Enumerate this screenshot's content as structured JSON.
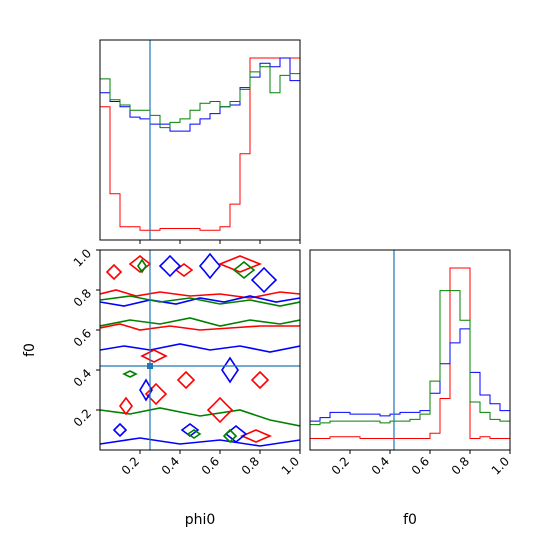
{
  "chart_data": {
    "type": "corner",
    "colors": {
      "series_1": "#ff0000",
      "series_2": "#0000ff",
      "series_3": "#008000",
      "truth": "#1f77b4"
    },
    "labels": {
      "phi0": "phi0",
      "f0": "f0"
    },
    "ticks": {
      "phi0": [
        "0.2",
        "0.4",
        "0.6",
        "0.8",
        "1.0"
      ],
      "f0": [
        "0.2",
        "0.4",
        "0.6",
        "0.8",
        "1.0"
      ]
    },
    "ranges": {
      "phi0": [
        0,
        1
      ],
      "f0": [
        0,
        1
      ]
    },
    "truth": {
      "phi0": 0.25,
      "f0": 0.42
    },
    "hist_phi0": {
      "bins": 20,
      "series": [
        {
          "color": "#ff0000",
          "values": [
            0.72,
            0.22,
            0.03,
            0.03,
            0.01,
            0.01,
            0.02,
            0.02,
            0.02,
            0.02,
            0.01,
            0.01,
            0.03,
            0.16,
            0.45,
            1.0,
            1.0,
            1.0,
            1.0,
            1.0
          ]
        },
        {
          "color": "#0000ff",
          "values": [
            0.8,
            0.75,
            0.72,
            0.66,
            0.65,
            0.62,
            0.62,
            0.58,
            0.58,
            0.62,
            0.65,
            0.68,
            0.72,
            0.73,
            0.83,
            0.89,
            0.97,
            0.95,
            1.0,
            0.87
          ]
        },
        {
          "color": "#008000",
          "values": [
            0.88,
            0.76,
            0.73,
            0.7,
            0.7,
            0.67,
            0.6,
            0.63,
            0.65,
            0.7,
            0.74,
            0.75,
            0.72,
            0.75,
            0.82,
            0.92,
            0.95,
            0.8,
            0.9,
            0.91
          ]
        }
      ]
    },
    "hist_f0": {
      "bins": 20,
      "series": [
        {
          "color": "#ff0000",
          "values": [
            0.02,
            0.02,
            0.03,
            0.03,
            0.03,
            0.02,
            0.02,
            0.02,
            0.02,
            0.02,
            0.02,
            0.02,
            0.05,
            0.25,
            1.0,
            1.0,
            0.02,
            0.03,
            0.02,
            0.02
          ]
        },
        {
          "color": "#0000ff",
          "values": [
            0.12,
            0.14,
            0.17,
            0.17,
            0.16,
            0.16,
            0.16,
            0.15,
            0.16,
            0.17,
            0.17,
            0.18,
            0.28,
            0.45,
            0.57,
            0.65,
            0.4,
            0.27,
            0.22,
            0.18
          ]
        },
        {
          "color": "#008000",
          "values": [
            0.1,
            0.11,
            0.12,
            0.12,
            0.12,
            0.12,
            0.12,
            0.11,
            0.12,
            0.12,
            0.13,
            0.16,
            0.35,
            0.87,
            0.87,
            0.7,
            0.23,
            0.17,
            0.13,
            0.12
          ]
        }
      ]
    },
    "contour_paths": [
      {
        "color": "#ff0000",
        "points": [
          [
            0.0,
            0.78
          ],
          [
            0.08,
            0.8
          ],
          [
            0.18,
            0.77
          ],
          [
            0.3,
            0.79
          ],
          [
            0.45,
            0.77
          ],
          [
            0.6,
            0.78
          ],
          [
            0.75,
            0.76
          ],
          [
            0.9,
            0.79
          ],
          [
            1.0,
            0.78
          ]
        ]
      },
      {
        "color": "#ff0000",
        "points": [
          [
            0.0,
            0.61
          ],
          [
            0.1,
            0.63
          ],
          [
            0.2,
            0.6
          ],
          [
            0.35,
            0.62
          ],
          [
            0.5,
            0.6
          ],
          [
            0.65,
            0.61
          ],
          [
            0.8,
            0.62
          ],
          [
            1.0,
            0.62
          ]
        ]
      },
      {
        "color": "#0000ff",
        "points": [
          [
            0.0,
            0.74
          ],
          [
            0.12,
            0.72
          ],
          [
            0.25,
            0.75
          ],
          [
            0.38,
            0.73
          ],
          [
            0.5,
            0.76
          ],
          [
            0.62,
            0.74
          ],
          [
            0.75,
            0.77
          ],
          [
            0.88,
            0.74
          ],
          [
            1.0,
            0.76
          ]
        ]
      },
      {
        "color": "#0000ff",
        "points": [
          [
            0.0,
            0.5
          ],
          [
            0.12,
            0.52
          ],
          [
            0.25,
            0.5
          ],
          [
            0.4,
            0.53
          ],
          [
            0.55,
            0.5
          ],
          [
            0.7,
            0.52
          ],
          [
            0.85,
            0.49
          ],
          [
            1.0,
            0.52
          ]
        ]
      },
      {
        "color": "#0000ff",
        "points": [
          [
            0.0,
            0.03
          ],
          [
            0.2,
            0.06
          ],
          [
            0.4,
            0.03
          ],
          [
            0.6,
            0.05
          ],
          [
            0.8,
            0.02
          ],
          [
            1.0,
            0.05
          ]
        ]
      },
      {
        "color": "#008000",
        "points": [
          [
            0.0,
            0.75
          ],
          [
            0.15,
            0.77
          ],
          [
            0.3,
            0.74
          ],
          [
            0.45,
            0.76
          ],
          [
            0.6,
            0.73
          ],
          [
            0.75,
            0.75
          ],
          [
            0.9,
            0.72
          ],
          [
            1.0,
            0.74
          ]
        ]
      },
      {
        "color": "#008000",
        "points": [
          [
            0.0,
            0.62
          ],
          [
            0.15,
            0.65
          ],
          [
            0.3,
            0.63
          ],
          [
            0.45,
            0.66
          ],
          [
            0.6,
            0.62
          ],
          [
            0.75,
            0.65
          ],
          [
            0.9,
            0.63
          ],
          [
            1.0,
            0.65
          ]
        ]
      },
      {
        "color": "#008000",
        "points": [
          [
            0.0,
            0.2
          ],
          [
            0.15,
            0.18
          ],
          [
            0.3,
            0.21
          ],
          [
            0.5,
            0.17
          ],
          [
            0.7,
            0.2
          ],
          [
            0.85,
            0.15
          ],
          [
            1.0,
            0.12
          ]
        ]
      }
    ],
    "contour_loops": [
      {
        "color": "#ff0000",
        "cx": 0.07,
        "cy": 0.89,
        "rx": 0.035,
        "ry": 0.035
      },
      {
        "color": "#ff0000",
        "cx": 0.2,
        "cy": 0.93,
        "rx": 0.05,
        "ry": 0.04
      },
      {
        "color": "#ff0000",
        "cx": 0.42,
        "cy": 0.9,
        "rx": 0.04,
        "ry": 0.03
      },
      {
        "color": "#ff0000",
        "cx": 0.7,
        "cy": 0.93,
        "rx": 0.1,
        "ry": 0.04
      },
      {
        "color": "#ff0000",
        "cx": 0.13,
        "cy": 0.22,
        "rx": 0.03,
        "ry": 0.04
      },
      {
        "color": "#ff0000",
        "cx": 0.28,
        "cy": 0.28,
        "rx": 0.05,
        "ry": 0.05
      },
      {
        "color": "#ff0000",
        "cx": 0.43,
        "cy": 0.35,
        "rx": 0.04,
        "ry": 0.04
      },
      {
        "color": "#ff0000",
        "cx": 0.6,
        "cy": 0.2,
        "rx": 0.06,
        "ry": 0.06
      },
      {
        "color": "#ff0000",
        "cx": 0.8,
        "cy": 0.35,
        "rx": 0.04,
        "ry": 0.04
      },
      {
        "color": "#ff0000",
        "cx": 0.27,
        "cy": 0.47,
        "rx": 0.06,
        "ry": 0.03
      },
      {
        "color": "#ff0000",
        "cx": 0.78,
        "cy": 0.07,
        "rx": 0.07,
        "ry": 0.03
      },
      {
        "color": "#0000ff",
        "cx": 0.35,
        "cy": 0.92,
        "rx": 0.05,
        "ry": 0.05
      },
      {
        "color": "#0000ff",
        "cx": 0.55,
        "cy": 0.92,
        "rx": 0.05,
        "ry": 0.06
      },
      {
        "color": "#0000ff",
        "cx": 0.82,
        "cy": 0.85,
        "rx": 0.06,
        "ry": 0.06
      },
      {
        "color": "#0000ff",
        "cx": 0.65,
        "cy": 0.4,
        "rx": 0.04,
        "ry": 0.06
      },
      {
        "color": "#0000ff",
        "cx": 0.23,
        "cy": 0.3,
        "rx": 0.03,
        "ry": 0.05
      },
      {
        "color": "#0000ff",
        "cx": 0.1,
        "cy": 0.1,
        "rx": 0.03,
        "ry": 0.03
      },
      {
        "color": "#0000ff",
        "cx": 0.45,
        "cy": 0.1,
        "rx": 0.04,
        "ry": 0.03
      },
      {
        "color": "#0000ff",
        "cx": 0.68,
        "cy": 0.08,
        "rx": 0.05,
        "ry": 0.04
      },
      {
        "color": "#008000",
        "cx": 0.21,
        "cy": 0.92,
        "rx": 0.02,
        "ry": 0.03
      },
      {
        "color": "#008000",
        "cx": 0.72,
        "cy": 0.9,
        "rx": 0.05,
        "ry": 0.04
      },
      {
        "color": "#008000",
        "cx": 0.47,
        "cy": 0.08,
        "rx": 0.03,
        "ry": 0.02
      },
      {
        "color": "#008000",
        "cx": 0.65,
        "cy": 0.07,
        "rx": 0.03,
        "ry": 0.03
      },
      {
        "color": "#008000",
        "cx": 0.15,
        "cy": 0.38,
        "rx": 0.03,
        "ry": 0.015
      }
    ]
  }
}
